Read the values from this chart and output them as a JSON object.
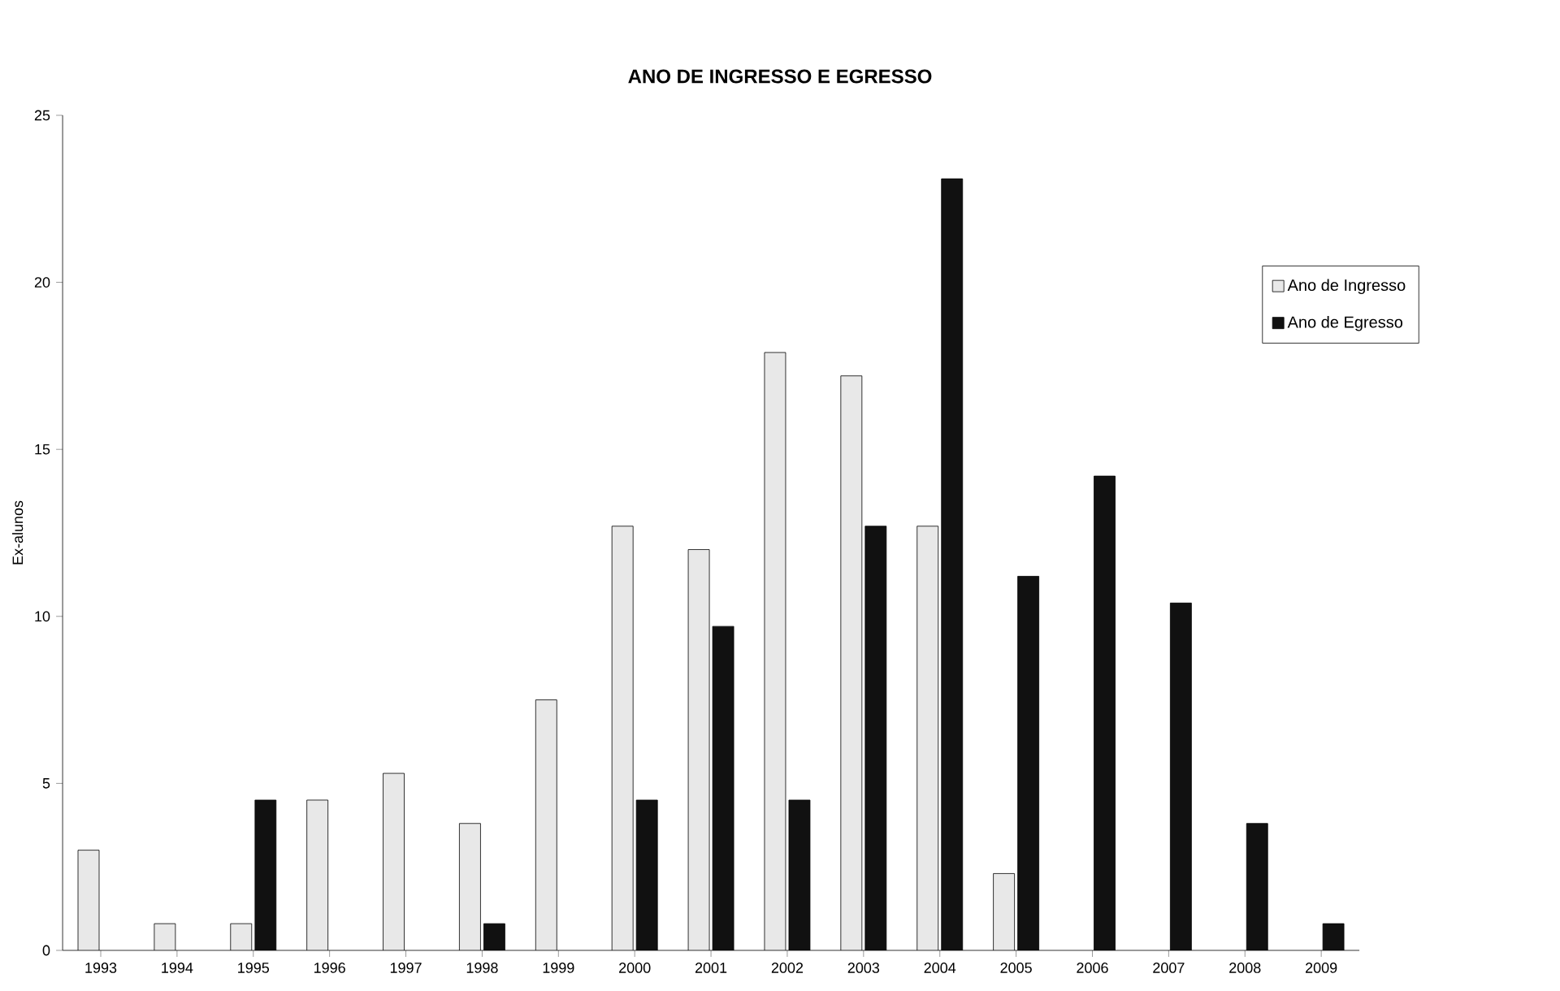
{
  "chart_data": {
    "type": "bar",
    "title": "ANO DE INGRESSO E EGRESSO",
    "ylabel": "Ex-alunos",
    "categories": [
      "1993",
      "1994",
      "1995",
      "1996",
      "1997",
      "1998",
      "1999",
      "2000",
      "2001",
      "2002",
      "2003",
      "2004",
      "2005",
      "2006",
      "2007",
      "2008",
      "2009"
    ],
    "series": [
      {
        "name": "Ano de Ingresso",
        "color": "#e8e8e8",
        "values": [
          3.0,
          0.8,
          0.8,
          4.5,
          5.3,
          3.8,
          7.5,
          12.7,
          12.0,
          17.9,
          17.2,
          12.7,
          2.3,
          null,
          null,
          null,
          null
        ]
      },
      {
        "name": "Ano de Egresso",
        "color": "#111111",
        "values": [
          null,
          null,
          4.5,
          null,
          null,
          0.8,
          null,
          4.5,
          9.7,
          4.5,
          12.7,
          23.1,
          11.2,
          14.2,
          10.4,
          3.8,
          0.8
        ]
      }
    ],
    "ylim": [
      0,
      25
    ],
    "yticks": [
      0,
      5,
      10,
      15,
      20,
      25
    ],
    "legend": "right"
  }
}
